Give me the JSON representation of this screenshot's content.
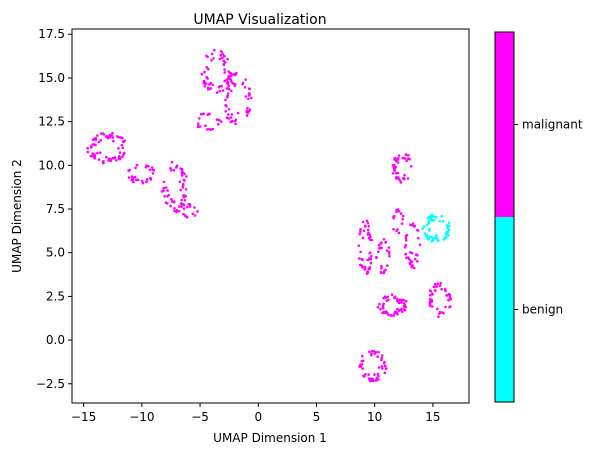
{
  "chart_data": {
    "type": "scatter",
    "title": "UMAP Visualization",
    "xlabel": "UMAP Dimension 1",
    "ylabel": "UMAP Dimension 2",
    "xlim": [
      -16,
      18.1
    ],
    "ylim": [
      -3.6,
      17.8
    ],
    "xticks": [
      -15,
      -10,
      -5,
      0,
      5,
      10,
      15
    ],
    "yticks": [
      -2.5,
      0.0,
      2.5,
      5.0,
      7.5,
      10.0,
      12.5,
      15.0,
      17.5
    ],
    "grid": false,
    "colorbar": {
      "labels": [
        "benign",
        "malignant"
      ],
      "colors": [
        "#00ffff",
        "#ff00ff"
      ]
    },
    "series": [
      {
        "label": "malignant",
        "color": "#ff00ff"
      },
      {
        "label": "benign",
        "color": "#00ffff"
      }
    ],
    "clusters": [
      {
        "class": "malignant",
        "cx": -13.0,
        "cy": 11.0,
        "rx": 1.7,
        "ry": 0.9,
        "n": 70
      },
      {
        "class": "malignant",
        "cx": -10.0,
        "cy": 9.5,
        "rx": 1.2,
        "ry": 0.6,
        "n": 30
      },
      {
        "class": "malignant",
        "cx": -7.2,
        "cy": 8.8,
        "rx": 1.1,
        "ry": 1.5,
        "n": 55
      },
      {
        "class": "malignant",
        "cx": -6.0,
        "cy": 7.4,
        "rx": 0.8,
        "ry": 0.4,
        "n": 15
      },
      {
        "class": "malignant",
        "cx": -3.6,
        "cy": 15.3,
        "rx": 1.3,
        "ry": 1.3,
        "n": 55
      },
      {
        "class": "malignant",
        "cx": -1.8,
        "cy": 13.8,
        "rx": 1.3,
        "ry": 1.5,
        "n": 60
      },
      {
        "class": "malignant",
        "cx": -4.3,
        "cy": 12.5,
        "rx": 1.2,
        "ry": 0.5,
        "n": 20
      },
      {
        "class": "malignant",
        "cx": 12.4,
        "cy": 9.9,
        "rx": 0.9,
        "ry": 0.9,
        "n": 40
      },
      {
        "class": "malignant",
        "cx": 9.2,
        "cy": 5.3,
        "rx": 0.6,
        "ry": 1.6,
        "n": 45
      },
      {
        "class": "malignant",
        "cx": 10.7,
        "cy": 4.8,
        "rx": 0.6,
        "ry": 1.0,
        "n": 25
      },
      {
        "class": "malignant",
        "cx": 13.2,
        "cy": 5.5,
        "rx": 0.7,
        "ry": 1.2,
        "n": 25
      },
      {
        "class": "malignant",
        "cx": 12.0,
        "cy": 6.8,
        "rx": 0.5,
        "ry": 0.7,
        "n": 15
      },
      {
        "class": "malignant",
        "cx": 13.3,
        "cy": 4.6,
        "rx": 0.5,
        "ry": 0.5,
        "n": 10
      },
      {
        "class": "malignant",
        "cx": 11.5,
        "cy": 2.0,
        "rx": 1.3,
        "ry": 0.6,
        "n": 55
      },
      {
        "class": "malignant",
        "cx": 15.6,
        "cy": 2.3,
        "rx": 1.0,
        "ry": 1.0,
        "n": 45
      },
      {
        "class": "malignant",
        "cx": 9.8,
        "cy": -1.5,
        "rx": 1.2,
        "ry": 0.9,
        "n": 50
      },
      {
        "class": "benign",
        "cx": 15.3,
        "cy": 6.4,
        "rx": 1.2,
        "ry": 0.8,
        "n": 60
      }
    ]
  }
}
